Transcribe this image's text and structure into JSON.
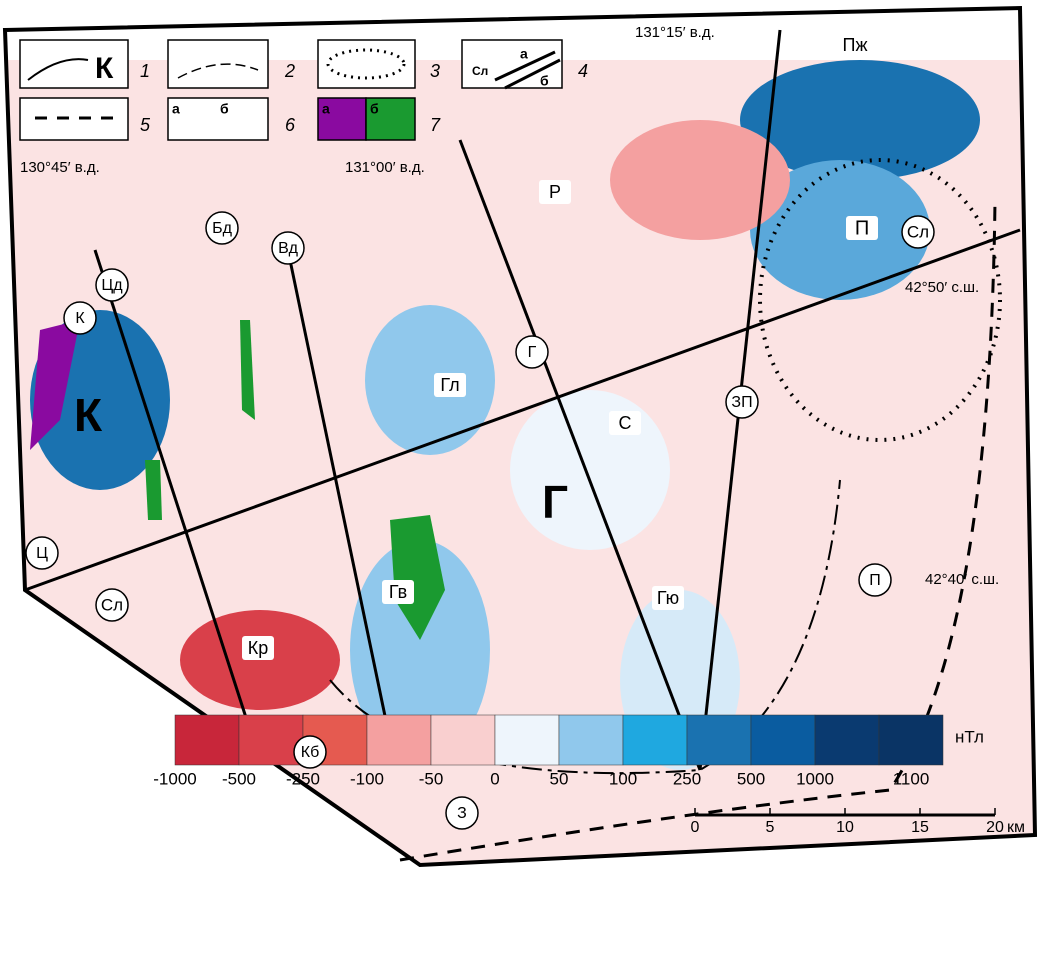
{
  "legend": {
    "numbers": [
      "1",
      "2",
      "3",
      "4",
      "5",
      "6",
      "7"
    ],
    "item1_letter": "К",
    "item4_letters": [
      "Сл",
      "а",
      "б"
    ],
    "item6_letters": [
      "а",
      "б"
    ],
    "item7_letters": [
      "а",
      "б"
    ]
  },
  "coordinates": [
    "131°15′ в.д.",
    "130°45′ в.д.",
    "131°00′ в.д.",
    "42°50′ с.ш.",
    "42°40′ с.ш."
  ],
  "map_labels": [
    "Пж",
    "Р",
    "П",
    "Сл",
    "Бд",
    "Вд",
    "Цд",
    "К",
    "К",
    "Г",
    "Гл",
    "С",
    "ЗП",
    "Г",
    "Ц",
    "П",
    "Сл",
    "Гв",
    "Гю",
    "Кр",
    "Кб",
    "З"
  ],
  "scale_bar": {
    "ticks": [
      0,
      5,
      10,
      15,
      20
    ],
    "unit": "км"
  },
  "colorbar": {
    "colors": [
      "#c8263a",
      "#d9404a",
      "#e55a50",
      "#f4a0a0",
      "#f9cfcf",
      "#eef5fc",
      "#90c8ec",
      "#1fa8e0",
      "#1a72b0",
      "#0a5ca0",
      "#0a3a70",
      "#0a3465"
    ],
    "ticks": [
      -1000,
      -500,
      -250,
      -100,
      -50,
      0,
      50,
      100,
      250,
      500,
      1000,
      1100
    ],
    "unit": "нТл"
  }
}
